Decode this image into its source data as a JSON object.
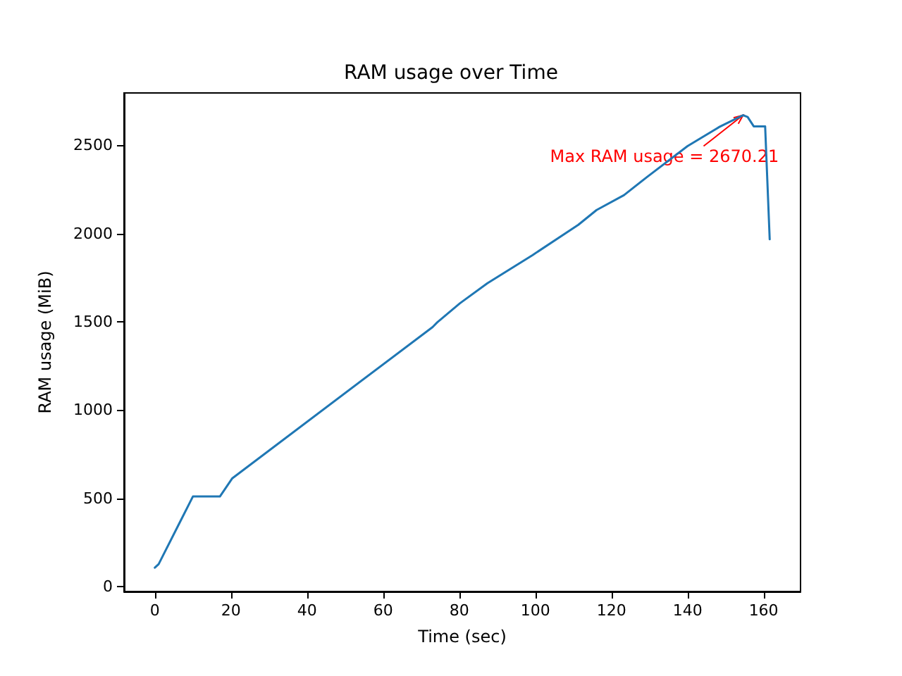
{
  "chart_data": {
    "type": "line",
    "title": "RAM usage over Time",
    "xlabel": "Time (sec)",
    "ylabel": "RAM usage (MiB)",
    "x": [
      0,
      1,
      10,
      17.1,
      20.3,
      73,
      74.2,
      80.2,
      87.4,
      99.3,
      111.3,
      116.1,
      123.3,
      129.3,
      140,
      148.4,
      154.6,
      155.8,
      157.4,
      160.4,
      161.6
    ],
    "series": [
      {
        "color": "#1f77b4",
        "values": [
          107,
          127,
          510,
          510,
          612,
          1470,
          1496,
          1605,
          1718,
          1878,
          2049,
          2133,
          2217,
          2319,
          2495,
          2604,
          2670,
          2660,
          2607,
          2607,
          1967
        ]
      }
    ],
    "xlim": [
      -8.1,
      169.7
    ],
    "xticks": [
      0,
      20,
      40,
      60,
      80,
      100,
      120,
      140,
      160
    ],
    "ylim": [
      -28,
      2796
    ],
    "yticks": [
      0,
      500,
      1000,
      1500,
      2000,
      2500
    ],
    "grid": false,
    "marker": "none",
    "line_style": "solid",
    "annotations": [
      {
        "text": "Max RAM usage = 2670.21",
        "x": 154.6,
        "y": 2670.21
      }
    ]
  }
}
